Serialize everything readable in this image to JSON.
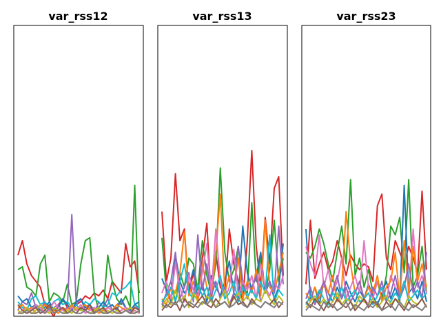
{
  "chart_data": [
    {
      "type": "line",
      "title": "var_rss12",
      "xlabel": "",
      "ylabel": "",
      "xlim": [
        0,
        27
      ],
      "ylim": [
        0,
        1
      ],
      "grid": false,
      "legend": "none",
      "series": [
        {
          "color": "#d62728",
          "values": [
            0.21,
            0.26,
            0.18,
            0.14,
            0.12,
            0.1,
            0.04,
            0.02,
            0.0,
            0.04,
            0.06,
            0.03,
            0.02,
            0.04,
            0.05,
            0.07,
            0.06,
            0.08,
            0.07,
            0.09,
            0.06,
            0.12,
            0.1,
            0.08,
            0.25,
            0.17,
            0.19,
            0.08
          ]
        },
        {
          "color": "#2ca02c",
          "values": [
            0.16,
            0.17,
            0.1,
            0.09,
            0.07,
            0.18,
            0.21,
            0.05,
            0.08,
            0.07,
            0.05,
            0.11,
            0.04,
            0.05,
            0.18,
            0.26,
            0.27,
            0.08,
            0.02,
            0.02,
            0.21,
            0.12,
            0.06,
            0.04,
            0.07,
            0.03,
            0.45,
            0.01
          ]
        },
        {
          "color": "#9467bd",
          "values": [
            0.02,
            0.05,
            0.04,
            0.08,
            0.03,
            0.02,
            0.05,
            0.02,
            0.03,
            0.04,
            0.02,
            0.03,
            0.35,
            0.04,
            0.06,
            0.02,
            0.03,
            0.01,
            0.05,
            0.03,
            0.06,
            0.02,
            0.04,
            0.05,
            0.03,
            0.01,
            0.04,
            0.02
          ]
        },
        {
          "color": "#17becf",
          "values": [
            0.05,
            0.03,
            0.02,
            0.06,
            0.07,
            0.04,
            0.05,
            0.03,
            0.05,
            0.06,
            0.04,
            0.05,
            0.03,
            0.04,
            0.02,
            0.05,
            0.04,
            0.06,
            0.05,
            0.03,
            0.04,
            0.08,
            0.07,
            0.09,
            0.1,
            0.12,
            0.04,
            0.03
          ]
        },
        {
          "color": "#1f77b4",
          "values": [
            0.07,
            0.05,
            0.06,
            0.03,
            0.04,
            0.02,
            0.03,
            0.05,
            0.02,
            0.03,
            0.06,
            0.04,
            0.02,
            0.05,
            0.06,
            0.03,
            0.04,
            0.02,
            0.03,
            0.05,
            0.03,
            0.04,
            0.02,
            0.06,
            0.03,
            0.02,
            0.04,
            0.05
          ]
        },
        {
          "color": "#ff7f0e",
          "values": [
            0.03,
            0.04,
            0.02,
            0.03,
            0.01,
            0.02,
            0.04,
            0.03,
            0.02,
            0.01,
            0.03,
            0.02,
            0.04,
            0.02,
            0.03,
            0.04,
            0.02,
            0.03,
            0.01,
            0.02,
            0.03,
            0.02,
            0.04,
            0.03,
            0.02,
            0.03,
            0.02,
            0.01
          ]
        },
        {
          "color": "#e377c2",
          "values": [
            0.01,
            0.02,
            0.03,
            0.02,
            0.04,
            0.03,
            0.01,
            0.02,
            0.05,
            0.03,
            0.02,
            0.01,
            0.03,
            0.02,
            0.04,
            0.01,
            0.02,
            0.03,
            0.02,
            0.01,
            0.03,
            0.02,
            0.01,
            0.02,
            0.03,
            0.01,
            0.02,
            0.01
          ]
        },
        {
          "color": "#bcbd22",
          "values": [
            0.02,
            0.01,
            0.03,
            0.01,
            0.02,
            0.04,
            0.02,
            0.01,
            0.03,
            0.02,
            0.01,
            0.02,
            0.01,
            0.03,
            0.02,
            0.02,
            0.01,
            0.02,
            0.03,
            0.01,
            0.02,
            0.01,
            0.02,
            0.01,
            0.02,
            0.03,
            0.01,
            0.02
          ]
        },
        {
          "color": "#8c564b",
          "values": [
            0.04,
            0.02,
            0.01,
            0.02,
            0.03,
            0.01,
            0.02,
            0.04,
            0.01,
            0.02,
            0.03,
            0.01,
            0.02,
            0.01,
            0.03,
            0.02,
            0.04,
            0.01,
            0.02,
            0.03,
            0.01,
            0.02,
            0.03,
            0.01,
            0.02,
            0.01,
            0.03,
            0.02
          ]
        },
        {
          "color": "#7f7f7f",
          "values": [
            0.01,
            0.01,
            0.02,
            0.01,
            0.01,
            0.02,
            0.01,
            0.03,
            0.01,
            0.02,
            0.01,
            0.01,
            0.02,
            0.01,
            0.01,
            0.02,
            0.01,
            0.01,
            0.02,
            0.01,
            0.01,
            0.02,
            0.01,
            0.01,
            0.02,
            0.01,
            0.01,
            0.02
          ]
        }
      ]
    },
    {
      "type": "line",
      "title": "var_rss13",
      "xlabel": "",
      "ylabel": "",
      "xlim": [
        0,
        27
      ],
      "ylim": [
        0,
        1
      ],
      "grid": false,
      "legend": "none",
      "series": [
        {
          "color": "#d62728",
          "values": [
            0.36,
            0.12,
            0.2,
            0.49,
            0.26,
            0.3,
            0.08,
            0.15,
            0.06,
            0.2,
            0.32,
            0.05,
            0.22,
            0.1,
            0.08,
            0.3,
            0.18,
            0.12,
            0.05,
            0.26,
            0.57,
            0.24,
            0.1,
            0.34,
            0.18,
            0.44,
            0.48,
            0.14
          ]
        },
        {
          "color": "#2ca02c",
          "values": [
            0.27,
            0.08,
            0.12,
            0.05,
            0.15,
            0.1,
            0.2,
            0.18,
            0.09,
            0.26,
            0.14,
            0.08,
            0.18,
            0.51,
            0.22,
            0.12,
            0.16,
            0.24,
            0.1,
            0.08,
            0.39,
            0.12,
            0.2,
            0.08,
            0.16,
            0.33,
            0.12,
            0.2
          ]
        },
        {
          "color": "#1f77b4",
          "values": [
            0.13,
            0.09,
            0.05,
            0.21,
            0.12,
            0.08,
            0.1,
            0.16,
            0.06,
            0.11,
            0.05,
            0.14,
            0.1,
            0.07,
            0.12,
            0.19,
            0.08,
            0.06,
            0.31,
            0.15,
            0.09,
            0.14,
            0.22,
            0.08,
            0.12,
            0.06,
            0.1,
            0.25
          ]
        },
        {
          "color": "#ff7f0e",
          "values": [
            0.06,
            0.04,
            0.1,
            0.08,
            0.15,
            0.29,
            0.07,
            0.12,
            0.05,
            0.18,
            0.1,
            0.06,
            0.22,
            0.42,
            0.08,
            0.14,
            0.09,
            0.2,
            0.06,
            0.12,
            0.08,
            0.16,
            0.07,
            0.33,
            0.1,
            0.08,
            0.15,
            0.22
          ]
        },
        {
          "color": "#9467bd",
          "values": [
            0.04,
            0.08,
            0.12,
            0.22,
            0.06,
            0.1,
            0.15,
            0.05,
            0.28,
            0.09,
            0.18,
            0.07,
            0.12,
            0.06,
            0.1,
            0.04,
            0.08,
            0.24,
            0.12,
            0.06,
            0.1,
            0.14,
            0.05,
            0.09,
            0.12,
            0.08,
            0.31,
            0.11
          ]
        },
        {
          "color": "#e377c2",
          "values": [
            0.08,
            0.12,
            0.06,
            0.18,
            0.1,
            0.05,
            0.14,
            0.09,
            0.07,
            0.15,
            0.25,
            0.08,
            0.3,
            0.12,
            0.06,
            0.1,
            0.23,
            0.07,
            0.12,
            0.09,
            0.14,
            0.06,
            0.18,
            0.1,
            0.07,
            0.12,
            0.09,
            0.14
          ]
        },
        {
          "color": "#17becf",
          "values": [
            0.05,
            0.07,
            0.1,
            0.05,
            0.12,
            0.18,
            0.08,
            0.06,
            0.11,
            0.07,
            0.1,
            0.05,
            0.09,
            0.14,
            0.06,
            0.08,
            0.12,
            0.05,
            0.1,
            0.07,
            0.09,
            0.06,
            0.12,
            0.08,
            0.28,
            0.05,
            0.09,
            0.07
          ]
        },
        {
          "color": "#bcbd22",
          "values": [
            0.03,
            0.06,
            0.04,
            0.09,
            0.05,
            0.07,
            0.03,
            0.08,
            0.05,
            0.04,
            0.07,
            0.05,
            0.03,
            0.06,
            0.09,
            0.04,
            0.06,
            0.08,
            0.05,
            0.07,
            0.04,
            0.06,
            0.05,
            0.09,
            0.06,
            0.04,
            0.07,
            0.05
          ]
        },
        {
          "color": "#8c564b",
          "values": [
            0.02,
            0.04,
            0.03,
            0.05,
            0.02,
            0.06,
            0.04,
            0.03,
            0.05,
            0.07,
            0.04,
            0.03,
            0.06,
            0.04,
            0.05,
            0.03,
            0.07,
            0.04,
            0.05,
            0.03,
            0.06,
            0.04,
            0.03,
            0.05,
            0.04,
            0.06,
            0.03,
            0.05
          ]
        },
        {
          "color": "#7f7f7f",
          "values": [
            0.04,
            0.03,
            0.05,
            0.04,
            0.06,
            0.03,
            0.05,
            0.04,
            0.03,
            0.05,
            0.04,
            0.06,
            0.03,
            0.04,
            0.05,
            0.03,
            0.04,
            0.06,
            0.04,
            0.03,
            0.05,
            0.04,
            0.03,
            0.05,
            0.04,
            0.03,
            0.05,
            0.04
          ]
        }
      ]
    },
    {
      "type": "line",
      "title": "var_rss23",
      "xlabel": "",
      "ylabel": "",
      "xlim": [
        0,
        27
      ],
      "ylim": [
        0,
        1
      ],
      "grid": false,
      "legend": "none",
      "series": [
        {
          "color": "#d62728",
          "values": [
            0.11,
            0.33,
            0.13,
            0.18,
            0.22,
            0.16,
            0.19,
            0.26,
            0.2,
            0.14,
            0.21,
            0.18,
            0.16,
            0.18,
            0.17,
            0.12,
            0.38,
            0.42,
            0.2,
            0.16,
            0.26,
            0.22,
            0.18,
            0.24,
            0.2,
            0.15,
            0.43,
            0.16
          ]
        },
        {
          "color": "#2ca02c",
          "values": [
            0.22,
            0.2,
            0.24,
            0.3,
            0.25,
            0.18,
            0.12,
            0.22,
            0.31,
            0.18,
            0.47,
            0.14,
            0.2,
            0.1,
            0.16,
            0.08,
            0.12,
            0.06,
            0.14,
            0.31,
            0.28,
            0.34,
            0.15,
            0.47,
            0.1,
            0.14,
            0.24,
            0.08
          ]
        },
        {
          "color": "#1f77b4",
          "values": [
            0.3,
            0.06,
            0.1,
            0.04,
            0.12,
            0.08,
            0.05,
            0.1,
            0.06,
            0.12,
            0.08,
            0.05,
            0.09,
            0.06,
            0.11,
            0.07,
            0.04,
            0.08,
            0.12,
            0.06,
            0.1,
            0.05,
            0.45,
            0.08,
            0.1,
            0.06,
            0.12,
            0.05
          ]
        },
        {
          "color": "#e377c2",
          "values": [
            0.24,
            0.18,
            0.14,
            0.28,
            0.1,
            0.16,
            0.08,
            0.12,
            0.2,
            0.06,
            0.1,
            0.14,
            0.08,
            0.26,
            0.1,
            0.06,
            0.12,
            0.09,
            0.05,
            0.14,
            0.1,
            0.08,
            0.12,
            0.06,
            0.3,
            0.1,
            0.14,
            0.08
          ]
        },
        {
          "color": "#ff7f0e",
          "values": [
            0.08,
            0.05,
            0.1,
            0.06,
            0.12,
            0.08,
            0.14,
            0.05,
            0.1,
            0.36,
            0.18,
            0.08,
            0.12,
            0.06,
            0.1,
            0.08,
            0.14,
            0.05,
            0.1,
            0.12,
            0.22,
            0.06,
            0.26,
            0.08,
            0.24,
            0.12,
            0.18,
            0.1
          ]
        },
        {
          "color": "#9467bd",
          "values": [
            0.06,
            0.1,
            0.04,
            0.08,
            0.12,
            0.05,
            0.09,
            0.14,
            0.06,
            0.1,
            0.05,
            0.08,
            0.12,
            0.06,
            0.04,
            0.1,
            0.07,
            0.12,
            0.05,
            0.08,
            0.14,
            0.06,
            0.1,
            0.18,
            0.08,
            0.12,
            0.06,
            0.22
          ]
        },
        {
          "color": "#17becf",
          "values": [
            0.04,
            0.07,
            0.05,
            0.09,
            0.06,
            0.04,
            0.08,
            0.06,
            0.1,
            0.05,
            0.07,
            0.09,
            0.05,
            0.06,
            0.08,
            0.04,
            0.07,
            0.1,
            0.06,
            0.05,
            0.08,
            0.06,
            0.12,
            0.05,
            0.07,
            0.09,
            0.06,
            0.08
          ]
        },
        {
          "color": "#bcbd22",
          "values": [
            0.03,
            0.05,
            0.07,
            0.04,
            0.06,
            0.03,
            0.05,
            0.08,
            0.04,
            0.06,
            0.05,
            0.03,
            0.07,
            0.05,
            0.04,
            0.06,
            0.03,
            0.05,
            0.07,
            0.04,
            0.06,
            0.05,
            0.03,
            0.07,
            0.05,
            0.04,
            0.06,
            0.03
          ]
        },
        {
          "color": "#8c564b",
          "values": [
            0.05,
            0.03,
            0.06,
            0.04,
            0.02,
            0.05,
            0.03,
            0.06,
            0.04,
            0.03,
            0.05,
            0.02,
            0.04,
            0.06,
            0.03,
            0.05,
            0.04,
            0.02,
            0.05,
            0.03,
            0.06,
            0.04,
            0.02,
            0.05,
            0.03,
            0.04,
            0.06,
            0.03
          ]
        },
        {
          "color": "#7f7f7f",
          "values": [
            0.02,
            0.04,
            0.03,
            0.02,
            0.05,
            0.03,
            0.04,
            0.02,
            0.03,
            0.05,
            0.02,
            0.04,
            0.03,
            0.02,
            0.04,
            0.03,
            0.05,
            0.02,
            0.03,
            0.04,
            0.02,
            0.05,
            0.03,
            0.02,
            0.04,
            0.03,
            0.02,
            0.04
          ]
        }
      ]
    }
  ]
}
